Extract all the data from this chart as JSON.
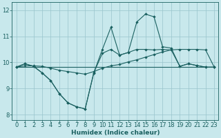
{
  "xlabel": "Humidex (Indice chaleur)",
  "xlim": [
    -0.5,
    23.5
  ],
  "ylim": [
    7.8,
    12.3
  ],
  "yticks": [
    8,
    9,
    10,
    11,
    12
  ],
  "xticks": [
    0,
    1,
    2,
    3,
    4,
    5,
    6,
    7,
    8,
    9,
    10,
    11,
    12,
    13,
    14,
    15,
    16,
    17,
    18,
    19,
    20,
    21,
    22,
    23
  ],
  "bg_color": "#c8e8ec",
  "grid_color": "#98c4cc",
  "line_color": "#1a6060",
  "line1_x": [
    0,
    1,
    2,
    3,
    4,
    5,
    6,
    7,
    8,
    9,
    10,
    11,
    12,
    13,
    14,
    15,
    16,
    17,
    18,
    19,
    20,
    21,
    22,
    23
  ],
  "line1_y": [
    9.82,
    9.82,
    9.82,
    9.82,
    9.82,
    9.82,
    9.82,
    9.82,
    9.82,
    9.82,
    9.82,
    9.82,
    9.82,
    9.82,
    9.82,
    9.82,
    9.82,
    9.82,
    9.82,
    9.82,
    9.82,
    9.82,
    9.82,
    9.82
  ],
  "line2_x": [
    0,
    1,
    2,
    3,
    4,
    5,
    6,
    7,
    8,
    9,
    10,
    11,
    12,
    13,
    14,
    15,
    16,
    17,
    18,
    19,
    20,
    21,
    22,
    23
  ],
  "line2_y": [
    9.82,
    9.87,
    9.87,
    9.85,
    9.78,
    9.7,
    9.65,
    9.6,
    9.55,
    9.65,
    9.78,
    9.87,
    9.92,
    10.02,
    10.1,
    10.2,
    10.3,
    10.4,
    10.48,
    10.5,
    10.5,
    10.5,
    10.48,
    9.82
  ],
  "line3_x": [
    0,
    1,
    2,
    3,
    4,
    5,
    6,
    7,
    8,
    9,
    10,
    11,
    12,
    13,
    14,
    15,
    16,
    17,
    18,
    19,
    20,
    21,
    22,
    23
  ],
  "line3_y": [
    9.82,
    9.95,
    9.85,
    9.6,
    9.3,
    8.8,
    8.45,
    8.3,
    8.22,
    9.6,
    10.35,
    10.5,
    10.28,
    10.38,
    10.5,
    10.5,
    10.48,
    10.5,
    10.48,
    9.85,
    9.95,
    9.88,
    9.82,
    9.82
  ],
  "line4_x": [
    0,
    1,
    2,
    3,
    4,
    5,
    6,
    7,
    8,
    9,
    10,
    11,
    12,
    13,
    14,
    15,
    16,
    17,
    18,
    19,
    20,
    21,
    22,
    23
  ],
  "line4_y": [
    9.82,
    9.95,
    9.85,
    9.6,
    9.3,
    8.8,
    8.45,
    8.3,
    8.22,
    9.6,
    10.5,
    11.35,
    10.28,
    10.38,
    11.55,
    11.85,
    11.75,
    10.6,
    10.55,
    9.85,
    9.95,
    9.88,
    9.82,
    9.82
  ]
}
